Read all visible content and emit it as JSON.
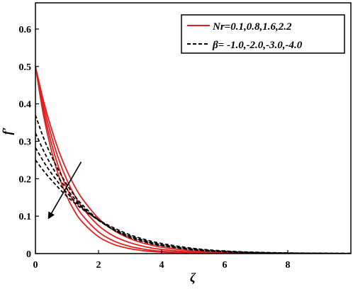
{
  "chart_data": {
    "type": "line",
    "xlabel": "ζ",
    "ylabel": "f′",
    "xlim": [
      0,
      10
    ],
    "ylim": [
      0,
      0.67
    ],
    "xticks": [
      "0",
      "2",
      "4",
      "6",
      "8"
    ],
    "yticks": [
      "0",
      "0.1",
      "0.2",
      "0.3",
      "0.4",
      "0.5",
      "0.6"
    ],
    "xtick_values": [
      0,
      2,
      4,
      6,
      8
    ],
    "ytick_values": [
      0,
      0.1,
      0.2,
      0.3,
      0.4,
      0.5,
      0.6
    ],
    "legend_position": "top-right",
    "legend": [
      {
        "label": "Nr=0.1,0.8,1.6,2.2",
        "style": "solid",
        "color": "#e02020"
      },
      {
        "label": "β= -1.0,-2.0,-3.0,-4.0",
        "style": "dashed",
        "color": "#000000"
      }
    ],
    "x": [
      0,
      0.25,
      0.5,
      0.75,
      1,
      1.25,
      1.5,
      2,
      2.5,
      3,
      3.5,
      4,
      5,
      6,
      7,
      8,
      9,
      10
    ],
    "series": [
      {
        "group": "Nr",
        "style": "solid",
        "color": "#e02020",
        "values": [
          0.5,
          0.41,
          0.335,
          0.272,
          0.221,
          0.179,
          0.145,
          0.094,
          0.061,
          0.04,
          0.026,
          0.017,
          0.007,
          0.003,
          0.0015,
          0.0007,
          0.0003,
          0.0001
        ]
      },
      {
        "group": "Nr",
        "style": "solid",
        "color": "#e02020",
        "values": [
          0.5,
          0.398,
          0.316,
          0.249,
          0.196,
          0.154,
          0.121,
          0.075,
          0.046,
          0.029,
          0.018,
          0.011,
          0.004,
          0.0016,
          0.0007,
          0.0003,
          0.0001,
          0
        ]
      },
      {
        "group": "Nr",
        "style": "solid",
        "color": "#e02020",
        "values": [
          0.5,
          0.385,
          0.296,
          0.227,
          0.174,
          0.133,
          0.101,
          0.058,
          0.033,
          0.019,
          0.011,
          0.006,
          0.002,
          0.0007,
          0.0002,
          0.0001,
          0,
          0
        ]
      },
      {
        "group": "Nr",
        "style": "solid",
        "color": "#e02020",
        "values": [
          0.5,
          0.372,
          0.277,
          0.205,
          0.152,
          0.112,
          0.083,
          0.045,
          0.024,
          0.013,
          0.007,
          0.004,
          0.001,
          0.0003,
          0.0001,
          0,
          0,
          0
        ]
      },
      {
        "group": "beta",
        "style": "dashed",
        "color": "#000000",
        "values": [
          0.37,
          0.311,
          0.262,
          0.22,
          0.184,
          0.154,
          0.129,
          0.09,
          0.062,
          0.043,
          0.03,
          0.021,
          0.01,
          0.005,
          0.002,
          0.001,
          0.0005,
          0.0002
        ]
      },
      {
        "group": "beta",
        "style": "dashed",
        "color": "#000000",
        "values": [
          0.322,
          0.276,
          0.236,
          0.201,
          0.172,
          0.146,
          0.124,
          0.089,
          0.063,
          0.045,
          0.032,
          0.022,
          0.011,
          0.005,
          0.0025,
          0.0012,
          0.0006,
          0.0003
        ]
      },
      {
        "group": "beta",
        "style": "dashed",
        "color": "#000000",
        "values": [
          0.283,
          0.247,
          0.215,
          0.187,
          0.162,
          0.14,
          0.121,
          0.089,
          0.065,
          0.047,
          0.034,
          0.024,
          0.012,
          0.006,
          0.003,
          0.0015,
          0.0007,
          0.0004
        ]
      },
      {
        "group": "beta",
        "style": "dashed",
        "color": "#000000",
        "values": [
          0.25,
          0.222,
          0.197,
          0.174,
          0.153,
          0.135,
          0.118,
          0.09,
          0.068,
          0.05,
          0.037,
          0.027,
          0.014,
          0.007,
          0.0035,
          0.0017,
          0.0009,
          0.0004
        ]
      }
    ],
    "annotation": {
      "type": "arrow",
      "from": [
        1.45,
        0.245
      ],
      "to": [
        0.42,
        0.095
      ]
    }
  }
}
